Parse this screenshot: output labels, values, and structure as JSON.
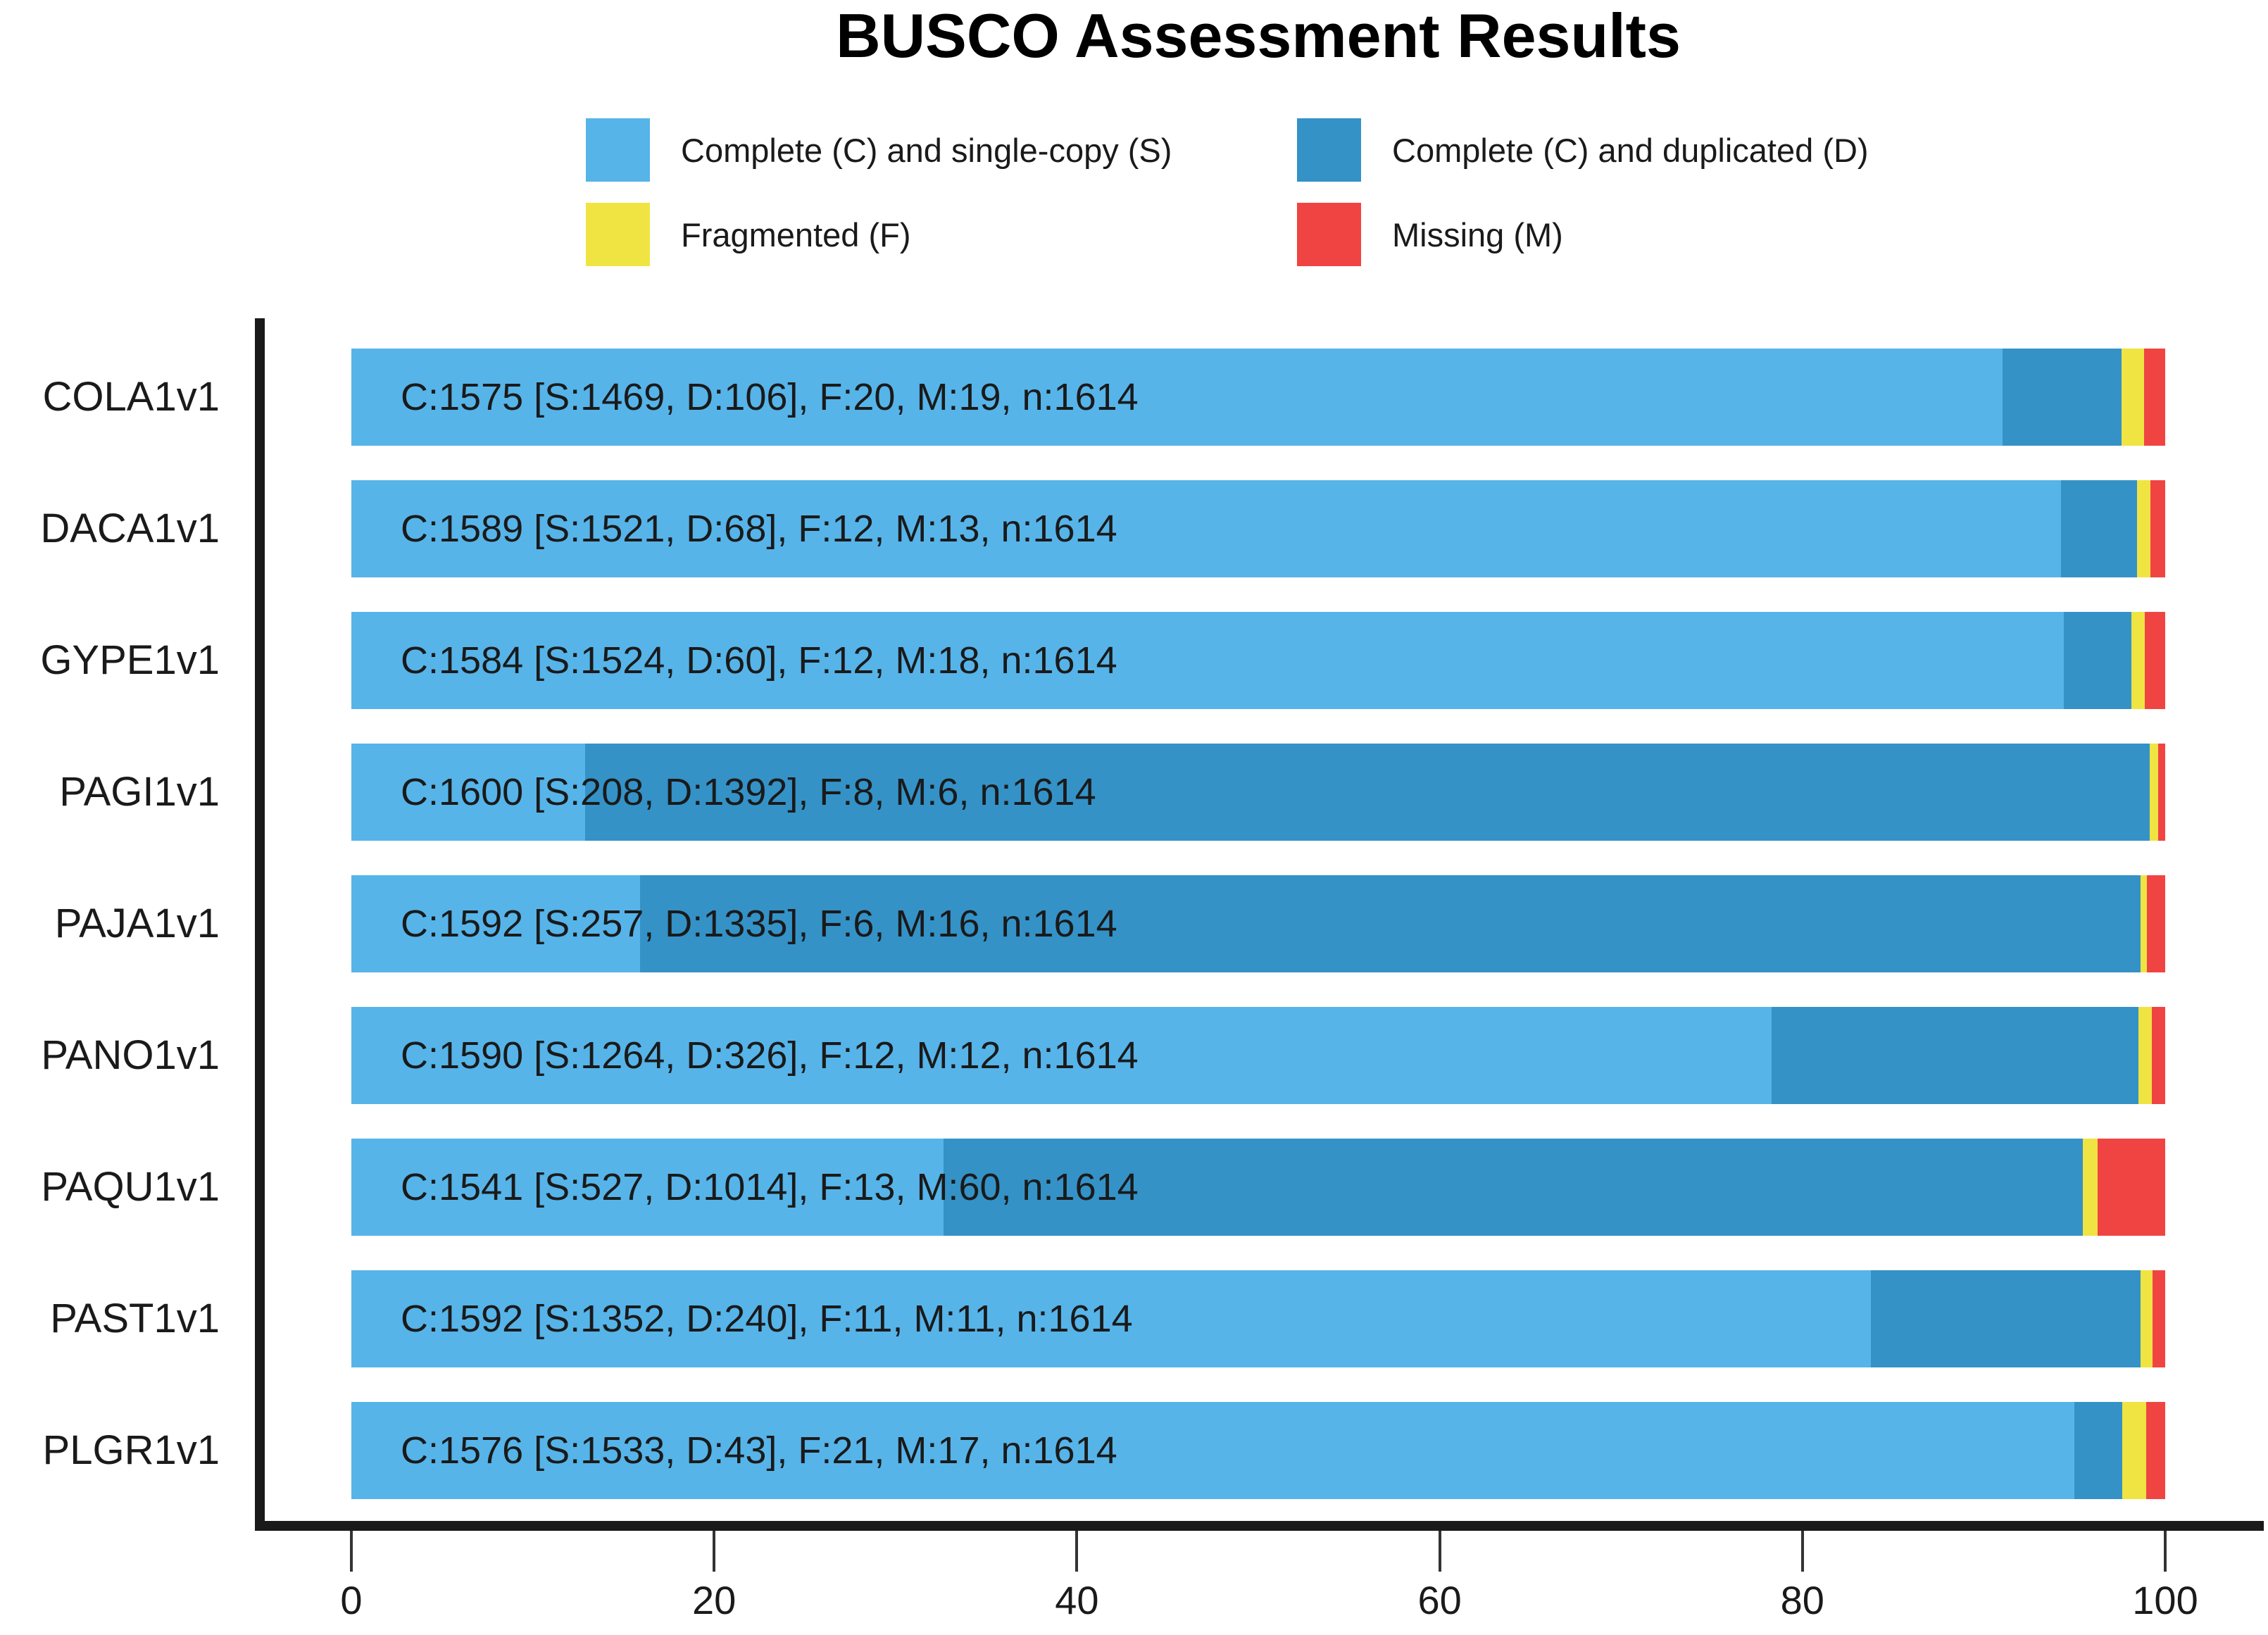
{
  "title": "BUSCO Assessment Results",
  "legend": {
    "items": [
      {
        "key": "S",
        "label": "Complete (C) and single-copy (S)",
        "color": "#56B4E9"
      },
      {
        "key": "D",
        "label": "Complete (C) and duplicated (D)",
        "color": "#3492C7"
      },
      {
        "key": "F",
        "label": "Fragmented (F)",
        "color": "#F0E442"
      },
      {
        "key": "M",
        "label": "Missing (M)",
        "color": "#F04442"
      }
    ]
  },
  "chart_data": {
    "type": "bar",
    "orientation": "horizontal",
    "stacked": true,
    "title": "BUSCO Assessment Results",
    "xlabel": "",
    "ylabel": "",
    "xlim": [
      0,
      100
    ],
    "xticks": [
      0,
      20,
      40,
      60,
      80,
      100
    ],
    "grid": false,
    "legend_position": "top",
    "total_per_bar": 1614,
    "categories": [
      "COLA1v1",
      "DACA1v1",
      "GYPE1v1",
      "PAGI1v1",
      "PAJA1v1",
      "PANO1v1",
      "PAQU1v1",
      "PAST1v1",
      "PLGR1v1"
    ],
    "series": [
      {
        "key": "S",
        "name": "Complete (C) and single-copy (S)",
        "color": "#56B4E9",
        "counts": [
          1469,
          1521,
          1524,
          208,
          257,
          1264,
          527,
          1352,
          1533
        ]
      },
      {
        "key": "D",
        "name": "Complete (C) and duplicated (D)",
        "color": "#3492C7",
        "counts": [
          106,
          68,
          60,
          1392,
          1335,
          326,
          1014,
          240,
          43
        ]
      },
      {
        "key": "F",
        "name": "Fragmented (F)",
        "color": "#F0E442",
        "counts": [
          20,
          12,
          12,
          8,
          6,
          12,
          13,
          11,
          21
        ]
      },
      {
        "key": "M",
        "name": "Missing (M)",
        "color": "#F04442",
        "counts": [
          19,
          13,
          18,
          6,
          16,
          12,
          60,
          11,
          17
        ]
      }
    ],
    "bar_labels": [
      "C:1575 [S:1469, D:106], F:20, M:19, n:1614",
      "C:1589 [S:1521, D:68], F:12, M:13, n:1614",
      "C:1584 [S:1524, D:60], F:12, M:18, n:1614",
      "C:1600 [S:208, D:1392], F:8, M:6, n:1614",
      "C:1592 [S:257, D:1335], F:6, M:16, n:1614",
      "C:1590 [S:1264, D:326], F:12, M:12, n:1614",
      "C:1541 [S:527, D:1014], F:13, M:60, n:1614",
      "C:1592 [S:1352, D:240], F:11, M:11, n:1614",
      "C:1576 [S:1533, D:43], F:21, M:17, n:1614"
    ]
  },
  "colors": {
    "complete_single": "#56B4E9",
    "complete_duplicated": "#3492C7",
    "fragmented": "#F0E442",
    "missing": "#F04442",
    "axis": "#1a1a1a",
    "background": "#ffffff"
  }
}
